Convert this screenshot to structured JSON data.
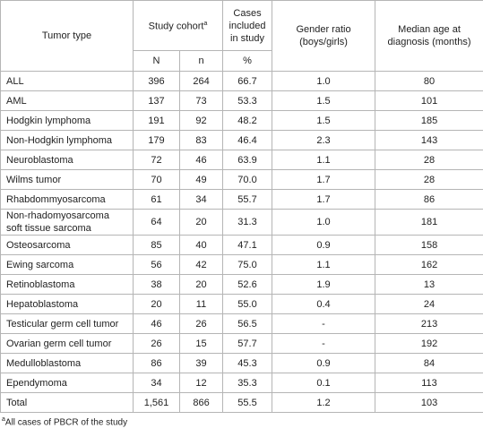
{
  "header": {
    "tumor_type": "Tumor type",
    "study_cohort": "Study cohort",
    "study_cohort_marker": "a",
    "cases_included": "Cases included in study",
    "gender_ratio": "Gender ratio (boys/girls)",
    "median_age": "Median age at diagnosis (months)",
    "sub": [
      "N",
      "n",
      "%"
    ]
  },
  "table": {
    "rows": [
      [
        "ALL",
        "396",
        "264",
        "66.7",
        "1.0",
        "80"
      ],
      [
        "AML",
        "137",
        "73",
        "53.3",
        "1.5",
        "101"
      ],
      [
        "Hodgkin lymphoma",
        "191",
        "92",
        "48.2",
        "1.5",
        "185"
      ],
      [
        "Non-Hodgkin lymphoma",
        "179",
        "83",
        "46.4",
        "2.3",
        "143"
      ],
      [
        "Neuroblastoma",
        "72",
        "46",
        "63.9",
        "1.1",
        "28"
      ],
      [
        "Wilms tumor",
        "70",
        "49",
        "70.0",
        "1.7",
        "28"
      ],
      [
        "Rhabdommyosarcoma",
        "61",
        "34",
        "55.7",
        "1.7",
        "86"
      ],
      [
        "Non-rhadomyosarcoma soft tissue sarcoma",
        "64",
        "20",
        "31.3",
        "1.0",
        "181"
      ],
      [
        "Osteosarcoma",
        "85",
        "40",
        "47.1",
        "0.9",
        "158"
      ],
      [
        "Ewing sarcoma",
        "56",
        "42",
        "75.0",
        "1.1",
        "162"
      ],
      [
        "Retinoblastoma",
        "38",
        "20",
        "52.6",
        "1.9",
        "13"
      ],
      [
        "Hepatoblastoma",
        "20",
        "11",
        "55.0",
        "0.4",
        "24"
      ],
      [
        "Testicular germ cell tumor",
        "46",
        "26",
        "56.5",
        "-",
        "213"
      ],
      [
        "Ovarian germ cell tumor",
        "26",
        "15",
        "57.7",
        "-",
        "192"
      ],
      [
        "Medulloblastoma",
        "86",
        "39",
        "45.3",
        "0.9",
        "84"
      ],
      [
        "Ependymoma",
        "34",
        "12",
        "35.3",
        "0.1",
        "113"
      ],
      [
        "Total",
        "1,561",
        "866",
        "55.5",
        "1.2",
        "103"
      ]
    ]
  },
  "footnote": {
    "marker": "a",
    "text": "All cases of PBCR of the study"
  }
}
